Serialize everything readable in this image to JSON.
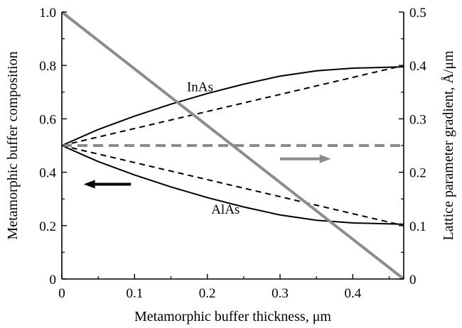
{
  "chart_data": {
    "type": "line",
    "xlabel": "Metamorphic buffer thickness, μm",
    "ylabel_left": "Metamorphic buffer composition",
    "ylabel_right": "Lattice parameter gradient, Å/μm",
    "xlim": [
      0,
      0.47
    ],
    "ylim_left": [
      0,
      1.0
    ],
    "ylim_right": [
      0,
      0.5
    ],
    "x_ticks": [
      0,
      0.1,
      0.2,
      0.3,
      0.4
    ],
    "x_tick_labels": [
      "0",
      "0.1",
      "0.2",
      "0.3",
      "0.4"
    ],
    "y_left_ticks": [
      0,
      0.2,
      0.4,
      0.6,
      0.8,
      1.0
    ],
    "y_left_tick_labels": [
      "0",
      "0.2",
      "0.4",
      "0.6",
      "0.8",
      "1.0"
    ],
    "y_right_ticks": [
      0,
      0.1,
      0.2,
      0.3,
      0.4,
      0.5
    ],
    "y_right_tick_labels": [
      "0",
      "0.1",
      "0.2",
      "0.3",
      "0.4",
      "0.5"
    ],
    "grid": false,
    "series": [
      {
        "name": "InAs",
        "axis": "left",
        "style": "solid",
        "color": "#000000",
        "x": [
          0,
          0.05,
          0.1,
          0.15,
          0.2,
          0.25,
          0.3,
          0.35,
          0.4,
          0.47
        ],
        "y": [
          0.5,
          0.56,
          0.61,
          0.655,
          0.695,
          0.73,
          0.76,
          0.78,
          0.79,
          0.795
        ]
      },
      {
        "name": "AlAs",
        "axis": "left",
        "style": "solid",
        "color": "#000000",
        "x": [
          0,
          0.05,
          0.1,
          0.15,
          0.2,
          0.25,
          0.3,
          0.35,
          0.4,
          0.47
        ],
        "y": [
          0.5,
          0.44,
          0.39,
          0.345,
          0.305,
          0.27,
          0.24,
          0.22,
          0.21,
          0.205
        ]
      },
      {
        "axis": "left",
        "style": "dashed",
        "color": "#000000",
        "x": [
          0,
          0.47
        ],
        "y": [
          0.5,
          0.8
        ]
      },
      {
        "axis": "left",
        "style": "dashed",
        "color": "#000000",
        "x": [
          0,
          0.47
        ],
        "y": [
          0.5,
          0.2
        ]
      },
      {
        "axis": "left",
        "style": "solid",
        "color": "#8c8c8c",
        "x": [
          0,
          0.47
        ],
        "y": [
          1.0,
          0.0
        ]
      },
      {
        "axis": "right",
        "style": "dashed",
        "color": "#8c8c8c",
        "x": [
          0,
          0.47
        ],
        "y": [
          0.25,
          0.25
        ]
      }
    ],
    "annotations": [
      {
        "text": "InAs",
        "x": 0.19,
        "y": 0.72
      },
      {
        "text": "AlAs",
        "x": 0.225,
        "y": 0.26
      }
    ],
    "arrows": [
      {
        "direction": "left",
        "color": "#000000",
        "x_from": 0.095,
        "x_to": 0.03,
        "y": 0.355,
        "axis": "left"
      },
      {
        "direction": "right",
        "color": "#8c8c8c",
        "x_from": 0.3,
        "x_to": 0.37,
        "y": 0.225,
        "axis": "right"
      }
    ]
  }
}
